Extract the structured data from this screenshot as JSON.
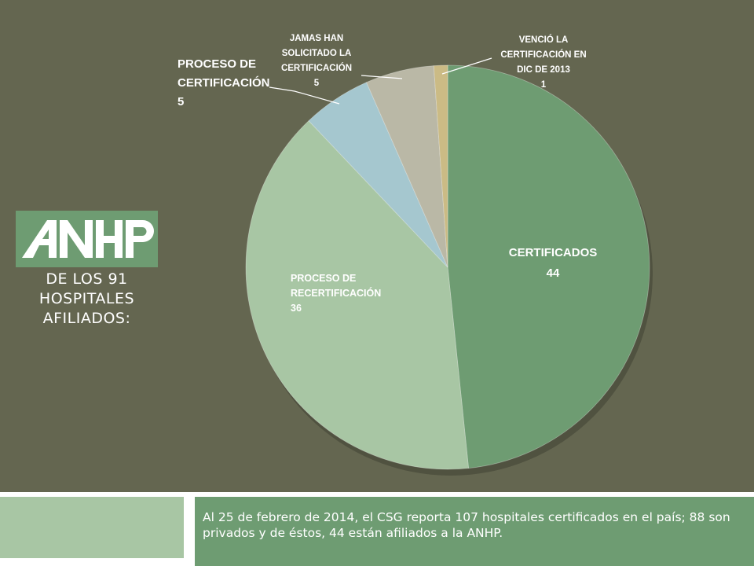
{
  "chart_data": {
    "type": "pie",
    "slices": [
      {
        "label": "CERTIFICADOS",
        "value": 44,
        "color": "#6e9c72"
      },
      {
        "label": "PROCESO DE RECERTIFICACIÓN",
        "value": 36,
        "color": "#a8c6a4"
      },
      {
        "label": "PROCESO DE CERTIFICACIÓN",
        "value": 5,
        "color": "#a5c7cf"
      },
      {
        "label": "JAMAS HAN SOLICITADO LA CERTIFICACIÓN",
        "value": 5,
        "color": "#bab8a6"
      },
      {
        "label": "VENCIÓ LA CERTIFICACIÓN EN DIC DE 2013",
        "value": 1,
        "color": "#cbbb85"
      }
    ],
    "labels": {
      "certificados": {
        "lines": [
          "CERTIFICADOS",
          "44"
        ]
      },
      "recertificacion": {
        "lines": [
          "PROCESO DE",
          "RECERTIFICACIÓN",
          "36"
        ]
      },
      "certificacion": {
        "lines": [
          "PROCESO DE",
          "CERTIFICACIÓN",
          "5"
        ]
      },
      "jamas": {
        "lines": [
          "JAMAS HAN",
          "SOLICITADO LA",
          "CERTIFICACIÓN",
          "5"
        ]
      },
      "vencio": {
        "lines": [
          "VENCIÓ LA",
          "CERTIFICACIÓN EN",
          "DIC DE 2013",
          "1"
        ]
      }
    }
  },
  "logo": {
    "text": "ANHP"
  },
  "left_caption": {
    "line1": "DE LOS 91",
    "line2": "HOSPITALES",
    "line3": "AFILIADOS:"
  },
  "footer": {
    "text": "Al 25 de febrero de 2014, el CSG reporta 107 hospitales certificados en el país; 88 son privados y de éstos, 44 están afiliados a la ANHP."
  }
}
